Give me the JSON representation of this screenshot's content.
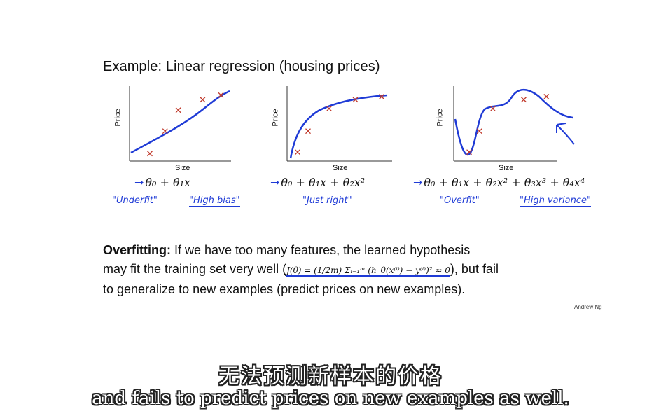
{
  "slide": {
    "title": "Example: Linear regression (housing prices)",
    "plots": [
      {
        "ylabel": "Price",
        "xlabel": "Size",
        "hypothesis": "θ₀ + θ₁x",
        "notes": [
          "\"Underfit\"",
          "\"High bias\""
        ],
        "points": [
          [
            0.2,
            0.1
          ],
          [
            0.35,
            0.4
          ],
          [
            0.48,
            0.68
          ],
          [
            0.72,
            0.82
          ],
          [
            0.9,
            0.88
          ]
        ]
      },
      {
        "ylabel": "Price",
        "xlabel": "Size",
        "hypothesis": "θ₀ + θ₁x + θ₂x²",
        "notes": [
          "\"Just right\""
        ],
        "points": [
          [
            0.1,
            0.12
          ],
          [
            0.2,
            0.4
          ],
          [
            0.4,
            0.7
          ],
          [
            0.65,
            0.82
          ],
          [
            0.9,
            0.86
          ]
        ]
      },
      {
        "ylabel": "Price",
        "xlabel": "Size",
        "hypothesis": "θ₀ + θ₁x + θ₂x² + θ₃x³ + θ₄x⁴",
        "notes": [
          "\"Overfit\"",
          "\"High variance\""
        ],
        "points": [
          [
            0.15,
            0.12
          ],
          [
            0.25,
            0.4
          ],
          [
            0.38,
            0.7
          ],
          [
            0.68,
            0.82
          ],
          [
            0.9,
            0.86
          ]
        ]
      }
    ],
    "paragraph": {
      "bold": "Overfitting:",
      "line1": " If we have too many features, the learned hypothesis",
      "line2a": "may fit the training set very well (",
      "formula": "J(θ) = (1/2m) Σᵢ₌₁ᵐ (h_θ(x⁽ⁱ⁾) − y⁽ⁱ⁾)² ≈ 0",
      "line2b": "), but fail",
      "line3": "to generalize to new examples (predict prices on new examples)."
    },
    "author": "Andrew Ng"
  },
  "subtitles": {
    "zh": "无法预测新样本的价格",
    "en": "and fails to predict prices on new examples as well."
  },
  "colors": {
    "ink": "#1f3bd6",
    "points": "#c0392b",
    "text": "#111111"
  }
}
